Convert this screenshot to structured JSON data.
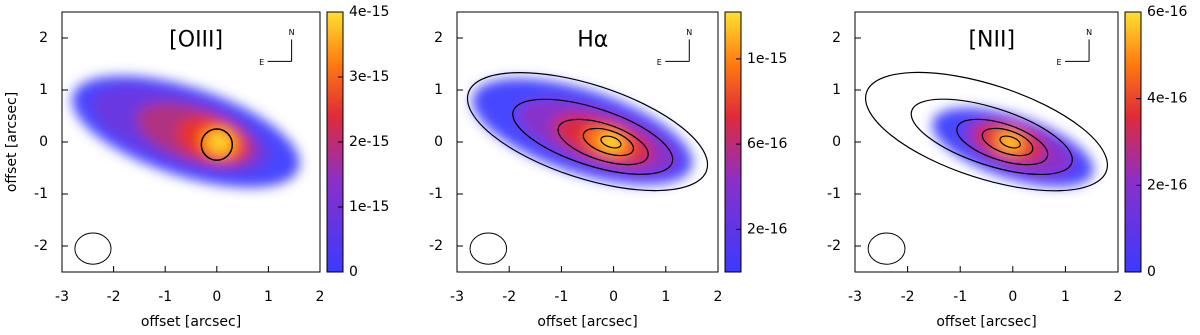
{
  "chart_data": [
    {
      "type": "heatmap",
      "title": "[OIII]",
      "xlabel": "offset [arcsec]",
      "ylabel": "offset [arcsec]",
      "annotations": [
        "N",
        "E"
      ],
      "xlim": [
        -3,
        2
      ],
      "xticks": [
        -3,
        -2,
        -1,
        0,
        1,
        2
      ],
      "ylim": [
        -2.5,
        2.5
      ],
      "yticks": [
        -2,
        -1,
        0,
        1,
        2
      ],
      "clim": [
        0,
        4e-15
      ],
      "cticks": [
        0,
        1e-15,
        2e-15,
        3e-15,
        4e-15
      ]
    },
    {
      "type": "heatmap",
      "title": "Hα",
      "xlabel": "offset [arcsec]",
      "annotations": [
        "N",
        "E"
      ],
      "xlim": [
        -3,
        2
      ],
      "xticks": [
        -3,
        -2,
        -1,
        0,
        1,
        2
      ],
      "ylim": [
        -2.5,
        2.5
      ],
      "yticks": [
        -2,
        -1,
        0,
        1,
        2
      ],
      "clim": [
        0,
        1.22e-15
      ],
      "cticks": [
        2e-16,
        6e-16,
        1e-15
      ]
    },
    {
      "type": "heatmap",
      "title": "[NII]",
      "xlabel": "offset [arcsec]",
      "annotations": [
        "N",
        "E"
      ],
      "xlim": [
        -3,
        2
      ],
      "xticks": [
        -3,
        -2,
        -1,
        0,
        1,
        2
      ],
      "ylim": [
        -2.5,
        2.5
      ],
      "yticks": [
        -2,
        -1,
        0,
        1,
        2
      ],
      "clim": [
        0,
        6e-16
      ],
      "cticks": [
        0,
        2e-16,
        4e-16,
        6e-16
      ]
    }
  ]
}
